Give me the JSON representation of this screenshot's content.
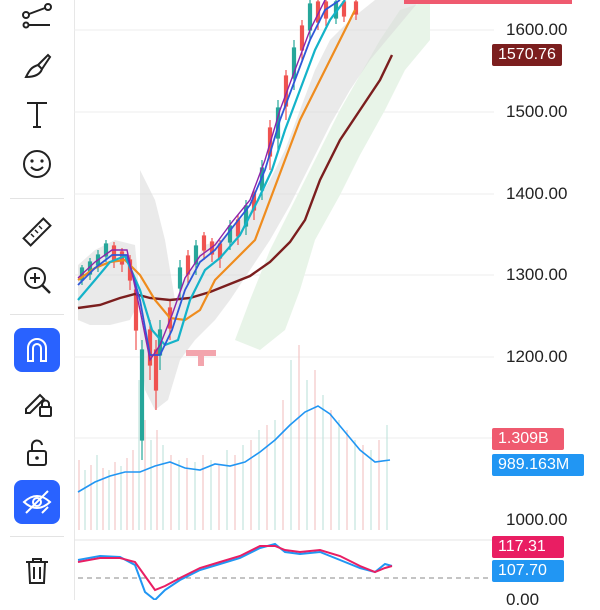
{
  "toolbar": {
    "tools": [
      {
        "name": "trend-line-tool-icon"
      },
      {
        "name": "brush-tool-icon"
      },
      {
        "name": "text-tool-icon"
      },
      {
        "name": "emoji-tool-icon"
      },
      {
        "name": "ruler-tool-icon"
      },
      {
        "name": "zoom-tool-icon"
      },
      {
        "name": "magnet-tool-icon",
        "active": true
      },
      {
        "name": "lock-drawing-icon"
      },
      {
        "name": "unlock-icon"
      },
      {
        "name": "hide-drawings-icon",
        "active": true
      },
      {
        "name": "trash-icon"
      }
    ]
  },
  "price_scale": {
    "ticks": [
      "1600.00",
      "1500.00",
      "1400.00",
      "1300.00",
      "1200.00",
      "1000.00"
    ]
  },
  "tags": {
    "ma_price": "1570.76",
    "volume_a": "1.309B",
    "volume_b": "989.163M",
    "macd_a": "117.31",
    "macd_b": "107.70",
    "bottom_zero": "0.00"
  },
  "colors": {
    "accent": "#2962ff",
    "ma_dark": "#7b1e1e",
    "volume_red_tag": "#ef5a6f",
    "volume_blue_tag": "#2196f3",
    "macd_pink_tag": "#e91e63"
  }
}
